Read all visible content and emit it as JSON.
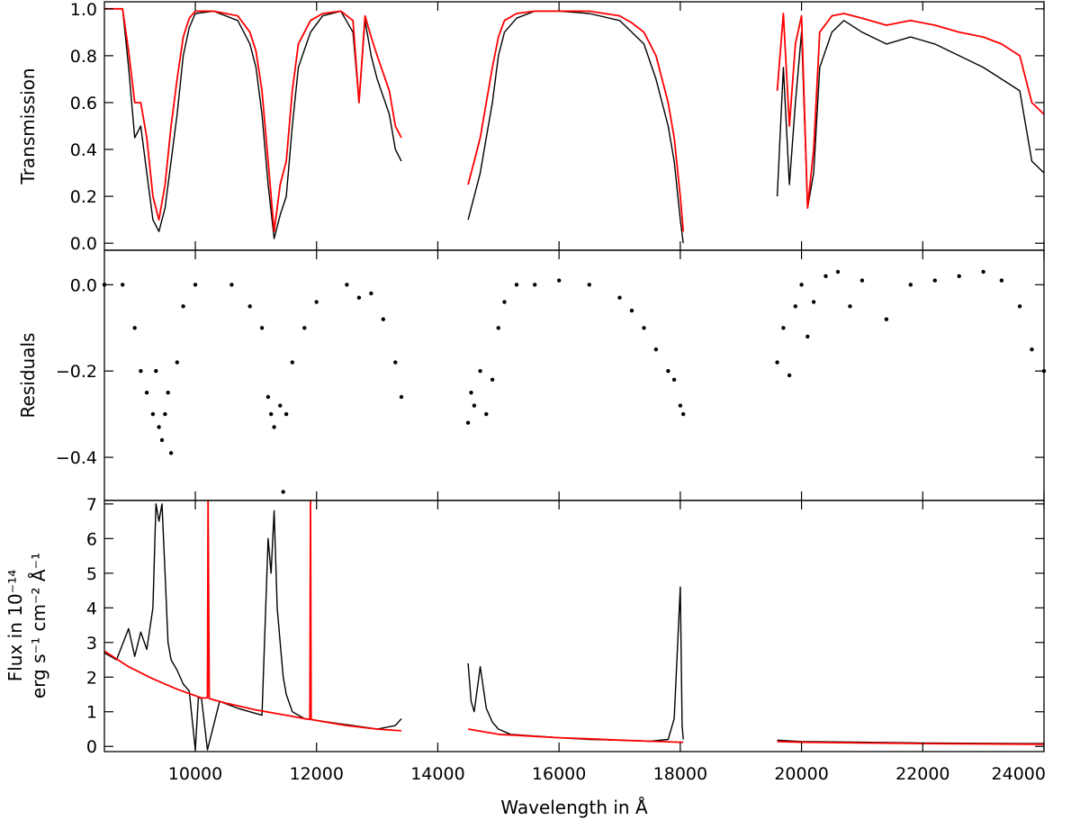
{
  "chart_data": [
    {
      "type": "line",
      "panel": "top",
      "ylabel": "Transmission",
      "xlim": [
        8500,
        24000
      ],
      "ylim": [
        -0.03,
        1.03
      ],
      "yticks": [
        0.0,
        0.2,
        0.4,
        0.6,
        0.8,
        1.0
      ],
      "ytick_labels": [
        "0.0",
        "0.2",
        "0.4",
        "0.6",
        "0.8",
        "1.0"
      ],
      "colors": {
        "observed": "#000000",
        "model": "#ff0000"
      },
      "series": [
        {
          "style": "line",
          "color": "#000000",
          "segments": [
            {
              "x": [
                8500,
                8800,
                8900,
                9000,
                9100,
                9200,
                9300,
                9400,
                9500,
                9600,
                9700,
                9800,
                9900,
                10000,
                10300,
                10700,
                10900,
                11000,
                11100,
                11200,
                11300,
                11400,
                11500,
                11600,
                11700,
                11900,
                12100,
                12400,
                12600,
                12700,
                12800,
                12900,
                13000,
                13200,
                13300,
                13400
              ],
              "y": [
                1.0,
                1.0,
                0.75,
                0.45,
                0.5,
                0.3,
                0.1,
                0.05,
                0.15,
                0.35,
                0.55,
                0.8,
                0.92,
                0.98,
                0.99,
                0.95,
                0.85,
                0.75,
                0.55,
                0.25,
                0.02,
                0.12,
                0.2,
                0.5,
                0.75,
                0.9,
                0.97,
                0.99,
                0.9,
                0.6,
                0.95,
                0.8,
                0.7,
                0.55,
                0.4,
                0.35
              ]
            },
            {
              "x": [
                14500,
                14600,
                14700,
                14800,
                14900,
                15000,
                15100,
                15300,
                15600,
                16000,
                16500,
                17000,
                17200,
                17400,
                17600,
                17800,
                17900,
                18000,
                18050
              ],
              "y": [
                0.1,
                0.2,
                0.3,
                0.45,
                0.6,
                0.8,
                0.9,
                0.96,
                0.99,
                0.99,
                0.98,
                0.95,
                0.9,
                0.85,
                0.7,
                0.5,
                0.35,
                0.1,
                0.0
              ]
            },
            {
              "x": [
                19600,
                19700,
                19800,
                19900,
                20000,
                20100,
                20200,
                20300,
                20500,
                20700,
                21000,
                21400,
                21800,
                22200,
                22600,
                23000,
                23300,
                23600,
                23800,
                24000
              ],
              "y": [
                0.2,
                0.75,
                0.25,
                0.6,
                0.9,
                0.15,
                0.3,
                0.75,
                0.9,
                0.95,
                0.9,
                0.85,
                0.88,
                0.85,
                0.8,
                0.75,
                0.7,
                0.65,
                0.35,
                0.3
              ]
            }
          ]
        },
        {
          "style": "line",
          "color": "#ff0000",
          "segments": [
            {
              "x": [
                8500,
                8800,
                8900,
                9000,
                9100,
                9200,
                9300,
                9400,
                9500,
                9600,
                9700,
                9800,
                9900,
                10000,
                10300,
                10700,
                10900,
                11000,
                11100,
                11200,
                11300,
                11400,
                11500,
                11600,
                11700,
                11900,
                12100,
                12400,
                12600,
                12700,
                12800,
                12900,
                13000,
                13200,
                13300,
                13400
              ],
              "y": [
                1.0,
                1.0,
                0.82,
                0.6,
                0.6,
                0.45,
                0.2,
                0.1,
                0.25,
                0.5,
                0.7,
                0.88,
                0.96,
                0.99,
                0.99,
                0.97,
                0.9,
                0.82,
                0.65,
                0.35,
                0.05,
                0.25,
                0.35,
                0.65,
                0.85,
                0.95,
                0.98,
                0.99,
                0.95,
                0.6,
                0.97,
                0.88,
                0.8,
                0.65,
                0.5,
                0.45
              ]
            },
            {
              "x": [
                14500,
                14600,
                14700,
                14800,
                14900,
                15000,
                15100,
                15300,
                15600,
                16000,
                16500,
                17000,
                17200,
                17400,
                17600,
                17800,
                17900,
                18000,
                18050
              ],
              "y": [
                0.25,
                0.35,
                0.45,
                0.6,
                0.75,
                0.88,
                0.95,
                0.98,
                0.99,
                0.99,
                0.99,
                0.97,
                0.94,
                0.9,
                0.8,
                0.6,
                0.45,
                0.2,
                0.05
              ]
            },
            {
              "x": [
                19600,
                19700,
                19800,
                19900,
                20000,
                20100,
                20200,
                20300,
                20500,
                20700,
                21000,
                21400,
                21800,
                22200,
                22600,
                23000,
                23300,
                23600,
                23800,
                24000
              ],
              "y": [
                0.65,
                0.98,
                0.5,
                0.85,
                0.97,
                0.15,
                0.4,
                0.9,
                0.97,
                0.98,
                0.96,
                0.93,
                0.95,
                0.93,
                0.9,
                0.88,
                0.85,
                0.8,
                0.6,
                0.55
              ]
            }
          ]
        }
      ]
    },
    {
      "type": "scatter",
      "panel": "middle",
      "ylabel": "Residuals",
      "xlim": [
        8500,
        24000
      ],
      "ylim": [
        -0.5,
        0.08
      ],
      "yticks": [
        -0.4,
        -0.2,
        0.0
      ],
      "ytick_labels": [
        "−0.4",
        "−0.2",
        "0.0"
      ],
      "series": [
        {
          "style": "scatter",
          "color": "#000000",
          "segments": [
            {
              "x": [
                8500,
                8800,
                9000,
                9100,
                9200,
                9300,
                9350,
                9400,
                9450,
                9500,
                9550,
                9600,
                9700,
                9800,
                10000,
                10600,
                10900,
                11100,
                11200,
                11250,
                11300,
                11400,
                11500,
                11600,
                11800,
                12000,
                12500,
                12700,
                12900,
                13100,
                13300,
                13400,
                11450
              ],
              "y": [
                0.0,
                0.0,
                -0.1,
                -0.2,
                -0.25,
                -0.3,
                -0.2,
                -0.33,
                -0.36,
                -0.3,
                -0.25,
                -0.39,
                -0.18,
                -0.05,
                0.0,
                0.0,
                -0.05,
                -0.1,
                -0.26,
                -0.3,
                -0.33,
                -0.28,
                -0.3,
                -0.18,
                -0.1,
                -0.04,
                0.0,
                -0.03,
                -0.02,
                -0.08,
                -0.18,
                -0.26,
                -0.48
              ]
            },
            {
              "x": [
                14500,
                14550,
                14600,
                14700,
                14800,
                14900,
                15000,
                15100,
                15300,
                15600,
                16000,
                16500,
                17000,
                17200,
                17400,
                17600,
                17800,
                17900,
                18000,
                18050
              ],
              "y": [
                -0.32,
                -0.25,
                -0.28,
                -0.2,
                -0.3,
                -0.22,
                -0.1,
                -0.04,
                0.0,
                0.0,
                0.01,
                0.0,
                -0.03,
                -0.06,
                -0.1,
                -0.15,
                -0.2,
                -0.22,
                -0.28,
                -0.3
              ]
            },
            {
              "x": [
                19600,
                19700,
                19800,
                19900,
                20000,
                20100,
                20200,
                20400,
                20600,
                20800,
                21000,
                21400,
                21800,
                22200,
                22600,
                23000,
                23300,
                23600,
                23800,
                24000
              ],
              "y": [
                -0.18,
                -0.1,
                -0.21,
                -0.05,
                0.0,
                -0.12,
                -0.04,
                0.02,
                0.03,
                -0.05,
                0.01,
                -0.08,
                0.0,
                0.01,
                0.02,
                0.03,
                0.01,
                -0.05,
                -0.15,
                -0.2
              ]
            }
          ]
        }
      ]
    },
    {
      "type": "line",
      "panel": "bottom",
      "xlabel": "Wavelength in Å",
      "ylabel_line1": "Flux in 10⁻¹⁴",
      "ylabel_line2": "erg s⁻¹ cm⁻² Å⁻¹",
      "xlim": [
        8500,
        24000
      ],
      "ylim": [
        -0.15,
        7.1
      ],
      "xticks": [
        10000,
        12000,
        14000,
        16000,
        18000,
        20000,
        22000,
        24000
      ],
      "xtick_labels": [
        "10000",
        "12000",
        "14000",
        "16000",
        "18000",
        "20000",
        "22000",
        "24000"
      ],
      "yticks": [
        0,
        1,
        2,
        3,
        4,
        5,
        6,
        7
      ],
      "ytick_labels": [
        "0",
        "1",
        "2",
        "3",
        "4",
        "5",
        "6",
        "7"
      ],
      "series": [
        {
          "style": "line",
          "color": "#000000",
          "segments": [
            {
              "x": [
                8500,
                8700,
                8900,
                9000,
                9100,
                9200,
                9300,
                9350,
                9400,
                9450,
                9500,
                9550,
                9600,
                9700,
                9800,
                9900,
                10000,
                10050,
                10100,
                10200,
                10400,
                10700,
                11000,
                11100,
                11200,
                11250,
                11300,
                11350,
                11400,
                11450,
                11500,
                11600,
                11800,
                12200,
                12600,
                13000,
                13300,
                13400
              ],
              "y": [
                2.7,
                2.5,
                3.4,
                2.6,
                3.3,
                2.8,
                4.0,
                7.0,
                6.5,
                7.0,
                5.0,
                3.0,
                2.5,
                2.2,
                1.8,
                1.6,
                -0.1,
                1.4,
                1.4,
                -0.1,
                1.3,
                1.1,
                0.95,
                0.9,
                6.0,
                5.0,
                6.8,
                4.0,
                3.0,
                2.0,
                1.5,
                1.0,
                0.8,
                0.7,
                0.6,
                0.5,
                0.6,
                0.8
              ]
            },
            {
              "x": [
                14500,
                14550,
                14600,
                14700,
                14800,
                14900,
                15000,
                15200,
                15600,
                16000,
                16500,
                17000,
                17500,
                17800,
                17900,
                18000,
                18030,
                18050
              ],
              "y": [
                2.4,
                1.3,
                1.0,
                2.3,
                1.1,
                0.7,
                0.5,
                0.35,
                0.3,
                0.25,
                0.2,
                0.18,
                0.15,
                0.2,
                0.8,
                4.6,
                0.6,
                0.2
              ]
            },
            {
              "x": [
                19600,
                20000,
                21000,
                22000,
                23000,
                24000
              ],
              "y": [
                0.18,
                0.14,
                0.12,
                0.1,
                0.09,
                0.08
              ]
            }
          ]
        },
        {
          "style": "line",
          "color": "#ff0000",
          "segments": [
            {
              "x": [
                8500,
                8900,
                9300,
                9700,
                10100,
                10200,
                10210,
                10230,
                10500,
                11000,
                11500,
                11800,
                11890,
                11900,
                11910,
                12000,
                12500,
                13000,
                13400
              ],
              "y": [
                2.75,
                2.3,
                1.95,
                1.65,
                1.4,
                1.4,
                7.1,
                1.38,
                1.25,
                1.05,
                0.9,
                0.8,
                0.78,
                7.1,
                0.78,
                0.75,
                0.6,
                0.5,
                0.45
              ]
            },
            {
              "x": [
                14500,
                15000,
                15500,
                16000,
                16500,
                17000,
                17500,
                18000,
                18050
              ],
              "y": [
                0.5,
                0.35,
                0.3,
                0.25,
                0.22,
                0.18,
                0.15,
                0.12,
                0.12
              ]
            },
            {
              "x": [
                19600,
                20000,
                21000,
                22000,
                23000,
                24000
              ],
              "y": [
                0.14,
                0.12,
                0.1,
                0.08,
                0.07,
                0.06
              ]
            }
          ]
        }
      ]
    }
  ]
}
